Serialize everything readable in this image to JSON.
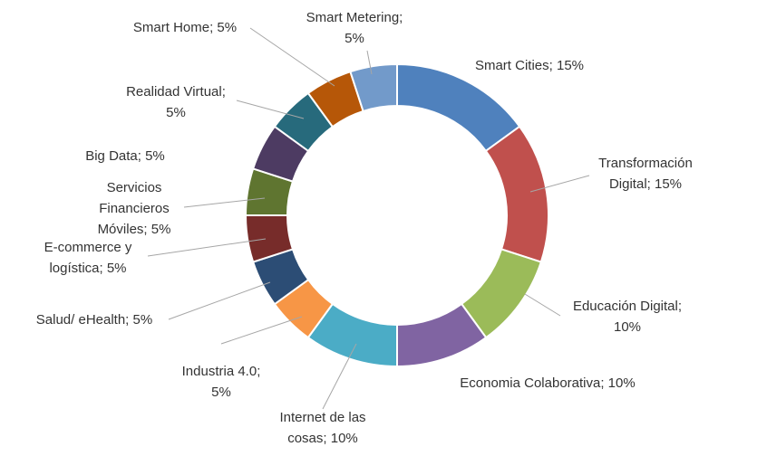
{
  "chart_data": {
    "type": "pie",
    "variant": "donut",
    "legend": "none",
    "slices": [
      {
        "label": "Smart Cities",
        "value": 15,
        "color": "#4F81BD",
        "text": [
          "Smart Cities; 15%"
        ]
      },
      {
        "label": "Transformación Digital",
        "value": 15,
        "color": "#C0504D",
        "text": [
          "Transformación",
          "Digital; 15%"
        ]
      },
      {
        "label": "Educación Digital",
        "value": 10,
        "color": "#9BBB59",
        "text": [
          "Educación Digital;",
          "10%"
        ]
      },
      {
        "label": "Economia Colaborativa",
        "value": 10,
        "color": "#8064A2",
        "text": [
          "Economia Colaborativa; 10%"
        ]
      },
      {
        "label": "Internet de las cosas",
        "value": 10,
        "color": "#4BACC6",
        "text": [
          "Internet de las",
          "cosas; 10%"
        ]
      },
      {
        "label": "Industria 4.0",
        "value": 5,
        "color": "#F79646",
        "text": [
          "Industria 4.0;",
          "5%"
        ]
      },
      {
        "label": "Salud/ eHealth",
        "value": 5,
        "color": "#2C4D75",
        "text": [
          "Salud/ eHealth; 5%"
        ]
      },
      {
        "label": "E-commerce y logística",
        "value": 5,
        "color": "#772C2A",
        "text": [
          "E-commerce y",
          "logística; 5%"
        ]
      },
      {
        "label": "Servicios Financieros Móviles",
        "value": 5,
        "color": "#5F7530",
        "text": [
          "Servicios",
          "Financieros",
          "Móviles; 5%"
        ]
      },
      {
        "label": "Big Data",
        "value": 5,
        "color": "#4D3B62",
        "text": [
          "Big Data; 5%"
        ]
      },
      {
        "label": "Realidad Virtual",
        "value": 5,
        "color": "#276A7C",
        "text": [
          "Realidad Virtual;",
          "5%"
        ]
      },
      {
        "label": "Smart Home",
        "value": 5,
        "color": "#B65708",
        "text": [
          "Smart Home; 5%"
        ]
      },
      {
        "label": "Smart Metering",
        "value": 5,
        "color": "#729ACA",
        "text": [
          "Smart Metering;",
          "5%"
        ]
      }
    ]
  }
}
